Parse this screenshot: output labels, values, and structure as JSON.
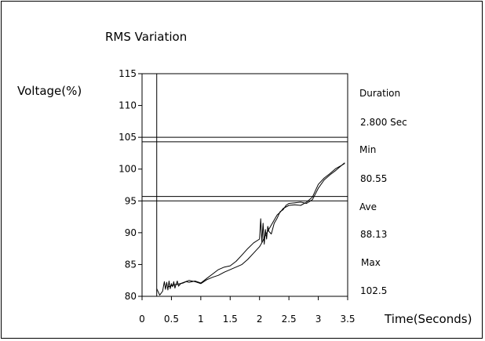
{
  "chart_data": {
    "type": "line",
    "title": "RMS Variation",
    "ylabel": "Voltage(%)",
    "xlabel": "Time(Seconds)",
    "xlim": [
      0,
      3.5
    ],
    "ylim": [
      80,
      115
    ],
    "xticks": [
      "0",
      "0.5",
      "1",
      "1.5",
      "2",
      "2.5",
      "3",
      "3.5"
    ],
    "yticks": [
      "80",
      "85",
      "90",
      "95",
      "100",
      "105",
      "110",
      "115"
    ],
    "event_start": 0.25,
    "threshold_lines": [
      95,
      95.7,
      104.3,
      105
    ],
    "series": [
      {
        "x": [
          0.25,
          0.3,
          0.35,
          0.38,
          0.4,
          0.42,
          0.44,
          0.46,
          0.48,
          0.5,
          0.52,
          0.54,
          0.56,
          0.58,
          0.6,
          0.62,
          0.64,
          0.66,
          0.7,
          0.75,
          0.8,
          0.9,
          1.0,
          1.1,
          1.2,
          1.3,
          1.4,
          1.5,
          1.6,
          1.7,
          1.8,
          1.9,
          2.0,
          2.02,
          2.04,
          2.06,
          2.08,
          2.1,
          2.12,
          2.14,
          2.16,
          2.2,
          2.25,
          2.3,
          2.35,
          2.4,
          2.45,
          2.5,
          2.6,
          2.7,
          2.8,
          2.9,
          3.0,
          3.1,
          3.2,
          3.3,
          3.4,
          3.45
        ],
        "y": [
          81.2,
          80.2,
          80.8,
          82.3,
          81.1,
          82.2,
          81.0,
          82.4,
          81.2,
          82.0,
          81.5,
          82.3,
          81.3,
          81.9,
          82.4,
          81.6,
          81.8,
          82.0,
          82.1,
          82.3,
          82.2,
          82.4,
          82.1,
          82.8,
          83.5,
          84.2,
          84.6,
          84.8,
          85.5,
          86.5,
          87.5,
          88.4,
          89.0,
          92.2,
          88.5,
          91.5,
          88.2,
          90.5,
          89.0,
          91.0,
          90.2,
          89.8,
          91.5,
          92.3,
          93.3,
          93.6,
          94.3,
          94.6,
          94.7,
          94.8,
          94.6,
          95.2,
          97.0,
          98.3,
          99.1,
          99.8,
          100.6,
          100.9
        ]
      },
      {
        "x": [
          0.45,
          0.55,
          0.65,
          0.8,
          0.9,
          1.0,
          1.1,
          1.2,
          1.3,
          1.4,
          1.5,
          1.6,
          1.7,
          1.8,
          1.9,
          2.0,
          2.05,
          2.1,
          2.15,
          2.2,
          2.25,
          2.3,
          2.35,
          2.4,
          2.5,
          2.6,
          2.7,
          2.8,
          2.9,
          3.0,
          3.1,
          3.2,
          3.3,
          3.4,
          3.45
        ],
        "y": [
          81.5,
          81.8,
          82.0,
          82.5,
          82.3,
          82.0,
          82.6,
          83.0,
          83.3,
          83.8,
          84.2,
          84.6,
          85.0,
          85.8,
          86.8,
          87.8,
          88.6,
          89.6,
          90.4,
          91.2,
          92.0,
          92.8,
          93.2,
          93.8,
          94.3,
          94.4,
          94.3,
          94.8,
          95.6,
          97.6,
          98.6,
          99.3,
          100.1,
          100.6,
          101.0
        ]
      }
    ]
  },
  "stats": [
    {
      "label": "Duration",
      "value": "2.800 Sec"
    },
    {
      "label": "Min",
      "value": "80.55"
    },
    {
      "label": "Ave",
      "value": "88.13"
    },
    {
      "label": "Max",
      "value": "102.5"
    }
  ]
}
